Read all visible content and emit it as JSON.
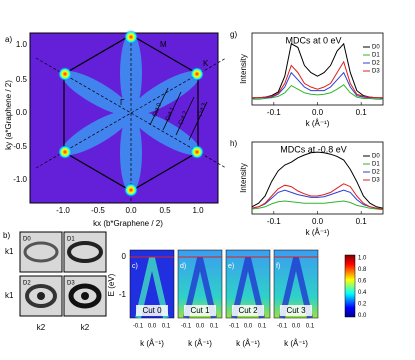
{
  "chart_data": [
    {
      "type": "line",
      "panel": "g)",
      "title": "MDCs at 0 eV",
      "xlabel": "k (Å⁻¹)",
      "ylabel": "Intensity",
      "x": [
        -0.15,
        -0.135,
        -0.12,
        -0.105,
        -0.09,
        -0.075,
        -0.06,
        -0.045,
        -0.03,
        -0.015,
        0,
        0.015,
        0.03,
        0.045,
        0.06,
        0.075,
        0.09,
        0.105,
        0.12,
        0.135,
        0.15
      ],
      "xlim": [
        -0.15,
        0.15
      ],
      "xticks": [
        -0.1,
        {
          "value": 0,
          "label": "0.0"
        },
        0.1
      ],
      "ylim": [
        0,
        1
      ],
      "legend": "upper right",
      "series": [
        {
          "name": "D0",
          "color": "#000000",
          "values": [
            0.1,
            0.1,
            0.11,
            0.13,
            0.18,
            0.4,
            0.85,
            0.8,
            0.55,
            0.45,
            0.4,
            0.45,
            0.55,
            0.75,
            0.85,
            0.45,
            0.2,
            0.13,
            0.11,
            0.1,
            0.1
          ]
        },
        {
          "name": "D1",
          "color": "#2fb52f",
          "values": [
            0.08,
            0.08,
            0.09,
            0.1,
            0.12,
            0.17,
            0.27,
            0.22,
            0.17,
            0.15,
            0.14,
            0.15,
            0.17,
            0.22,
            0.28,
            0.17,
            0.11,
            0.09,
            0.09,
            0.08,
            0.08
          ]
        },
        {
          "name": "D2",
          "color": "#2b3fd8",
          "values": [
            0.09,
            0.1,
            0.1,
            0.11,
            0.15,
            0.25,
            0.45,
            0.35,
            0.25,
            0.2,
            0.2,
            0.2,
            0.25,
            0.35,
            0.45,
            0.25,
            0.13,
            0.11,
            0.1,
            0.1,
            0.09
          ]
        },
        {
          "name": "D3",
          "color": "#e0201b",
          "values": [
            0.1,
            0.1,
            0.11,
            0.12,
            0.16,
            0.3,
            0.55,
            0.45,
            0.3,
            0.25,
            0.22,
            0.25,
            0.3,
            0.45,
            0.6,
            0.3,
            0.15,
            0.12,
            0.11,
            0.1,
            0.1
          ]
        }
      ]
    },
    {
      "type": "line",
      "panel": "h)",
      "title": "MDCs at -0.8 eV",
      "xlabel": "k (Å⁻¹)",
      "ylabel": "Intensity",
      "x": [
        -0.15,
        -0.135,
        -0.12,
        -0.105,
        -0.09,
        -0.075,
        -0.06,
        -0.045,
        -0.03,
        -0.015,
        0,
        0.015,
        0.03,
        0.045,
        0.06,
        0.075,
        0.09,
        0.105,
        0.12,
        0.135,
        0.15
      ],
      "xlim": [
        -0.15,
        0.15
      ],
      "xticks": [
        -0.1,
        {
          "value": 0,
          "label": "0.0"
        },
        0.1
      ],
      "ylim": [
        0,
        1
      ],
      "legend": "upper right",
      "series": [
        {
          "name": "D0",
          "color": "#000000",
          "values": [
            0.1,
            0.15,
            0.25,
            0.45,
            0.6,
            0.68,
            0.72,
            0.78,
            0.82,
            0.85,
            0.86,
            0.85,
            0.83,
            0.8,
            0.75,
            0.62,
            0.45,
            0.25,
            0.15,
            0.1,
            0.08
          ]
        },
        {
          "name": "D1",
          "color": "#2fb52f",
          "values": [
            0.07,
            0.08,
            0.1,
            0.14,
            0.17,
            0.18,
            0.17,
            0.16,
            0.15,
            0.15,
            0.15,
            0.15,
            0.16,
            0.17,
            0.18,
            0.16,
            0.12,
            0.1,
            0.08,
            0.07,
            0.06
          ]
        },
        {
          "name": "D2",
          "color": "#2b3fd8",
          "values": [
            0.08,
            0.1,
            0.14,
            0.22,
            0.3,
            0.33,
            0.3,
            0.27,
            0.25,
            0.23,
            0.23,
            0.24,
            0.27,
            0.3,
            0.33,
            0.3,
            0.2,
            0.13,
            0.1,
            0.08,
            0.07
          ]
        },
        {
          "name": "D3",
          "color": "#e0201b",
          "values": [
            0.08,
            0.1,
            0.15,
            0.25,
            0.35,
            0.4,
            0.38,
            0.32,
            0.28,
            0.25,
            0.25,
            0.27,
            0.3,
            0.36,
            0.42,
            0.38,
            0.25,
            0.15,
            0.1,
            0.08,
            0.07
          ]
        }
      ]
    }
  ],
  "panels": {
    "a": {
      "label": "a)",
      "ylabel": "ky (a*Graphene / 2)",
      "xlabel": "kx (b*Graphene / 2)",
      "xticks": [
        "-1.0",
        "-0.5",
        "0.0",
        "0.5",
        "1.0"
      ],
      "yticks": [
        "1.0",
        "0.5",
        "0.0",
        "-0.5",
        "-1.0"
      ],
      "points": [
        "M",
        "K",
        "Γ"
      ],
      "cuts": [
        "Cut 0",
        "Cut 1",
        "Cut 2",
        "Cut 3"
      ]
    },
    "b": {
      "label": "b)",
      "maps": [
        "D0",
        "D1",
        "D2",
        "D3"
      ],
      "ylabel": "k1",
      "xlabel": "k2"
    },
    "cf": {
      "labels": [
        "c)",
        "d)",
        "e)",
        "f)"
      ],
      "cuts": [
        "Cut 0",
        "Cut 1",
        "Cut 2",
        "Cut 3"
      ],
      "ylabel": "E (eV)",
      "yticks": [
        "0",
        "-1"
      ],
      "xticks": [
        "-0.1",
        "0.0",
        "0.1"
      ],
      "xlabel": "k (Å⁻¹)",
      "colorbar": [
        "1.0",
        "0.8",
        "0.6",
        "0.4",
        "0.2",
        "0.0"
      ]
    }
  }
}
